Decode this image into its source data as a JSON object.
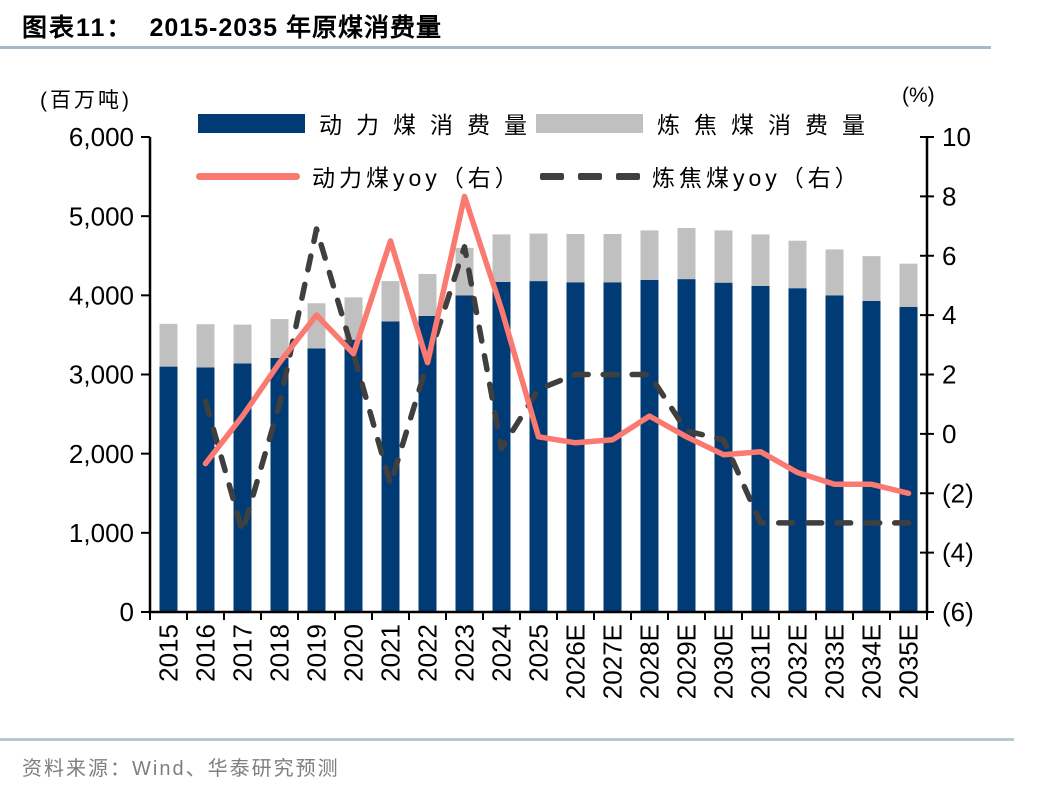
{
  "header": {
    "exhibit_label": "图表11：",
    "title": "2015-2035 年原煤消费量",
    "rule_color": "#a4b9c9"
  },
  "footer": {
    "source_text": "资料来源：Wind、华泰研究预测",
    "rule_color": "#b5c8d5",
    "text_color": "#7f7f7f"
  },
  "chart_data": {
    "type": "combo_stacked_bar_line",
    "categories": [
      "2015",
      "2016",
      "2017",
      "2018",
      "2019",
      "2020",
      "2021",
      "2022",
      "2023",
      "2024",
      "2025",
      "2026E",
      "2027E",
      "2028E",
      "2029E",
      "2030E",
      "2031E",
      "2032E",
      "2033E",
      "2034E",
      "2035E"
    ],
    "series": [
      {
        "name": "动力煤消费量",
        "type": "bar",
        "stacked": true,
        "axis": "left",
        "color": "#003B76",
        "values": [
          3100,
          3090,
          3140,
          3210,
          3330,
          3440,
          3670,
          3740,
          4000,
          4170,
          4180,
          4165,
          4165,
          4195,
          4205,
          4160,
          4120,
          4090,
          4000,
          3930,
          3855
        ]
      },
      {
        "name": "炼焦煤消费量",
        "type": "bar",
        "stacked": true,
        "axis": "left",
        "color": "#C0C0C0",
        "values": [
          540,
          545,
          490,
          490,
          570,
          535,
          510,
          530,
          600,
          600,
          600,
          610,
          610,
          625,
          645,
          660,
          650,
          600,
          580,
          565,
          545
        ]
      },
      {
        "name": "动力煤yoy（右）",
        "type": "line",
        "line_style": "solid",
        "axis": "right",
        "color": "#FA7A72",
        "values": [
          null,
          -1.0,
          0.6,
          2.4,
          4.0,
          2.7,
          6.5,
          2.4,
          8.0,
          4.2,
          -0.1,
          -0.3,
          -0.2,
          0.6,
          -0.1,
          -0.7,
          -0.6,
          -1.3,
          -1.7,
          -1.7,
          -2.0
        ]
      },
      {
        "name": "炼焦煤yoy（右）",
        "type": "line",
        "line_style": "dashed",
        "axis": "right",
        "color": "#3F3F3F",
        "values": [
          null,
          1.1,
          -3.3,
          1.0,
          6.9,
          2.7,
          -1.7,
          2.4,
          6.3,
          -0.5,
          1.5,
          2.0,
          2.0,
          2.0,
          0.1,
          -0.2,
          -3.0,
          -3.0,
          -3.0,
          -3.0,
          -3.0
        ]
      }
    ],
    "left_axis": {
      "title": "(百万吨)",
      "min": 0,
      "max": 6000,
      "ticks": [
        {
          "value": 6000,
          "label": "6,000"
        },
        {
          "value": 5000,
          "label": "5,000"
        },
        {
          "value": 4000,
          "label": "4,000"
        },
        {
          "value": 3000,
          "label": "3,000"
        },
        {
          "value": 2000,
          "label": "2,000"
        },
        {
          "value": 1000,
          "label": "1,000"
        },
        {
          "value": 0,
          "label": "0"
        }
      ]
    },
    "right_axis": {
      "title": "(%)",
      "min": -6,
      "max": 10,
      "ticks": [
        {
          "value": 10,
          "label": "10"
        },
        {
          "value": 8,
          "label": "8"
        },
        {
          "value": 6,
          "label": "6"
        },
        {
          "value": 4,
          "label": "4"
        },
        {
          "value": 2,
          "label": "2"
        },
        {
          "value": 0,
          "label": "0"
        },
        {
          "value": -2,
          "label": "(2)"
        },
        {
          "value": -4,
          "label": "(4)"
        },
        {
          "value": -6,
          "label": "(6)"
        }
      ]
    },
    "legend_position": "top",
    "gridlines": false,
    "axis_color": "#000000"
  }
}
